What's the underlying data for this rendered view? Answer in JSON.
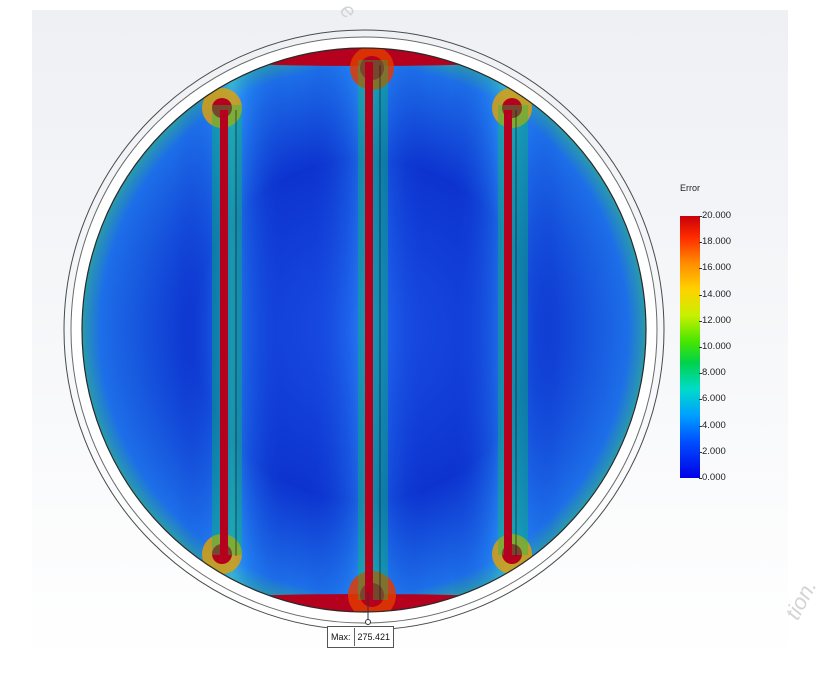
{
  "legend": {
    "title": "Error",
    "ticks": [
      "20.000",
      "18.000",
      "16.000",
      "14.000",
      "12.000",
      "10.000",
      "8.000",
      "6.000",
      "4.000",
      "2.000",
      "0.000"
    ]
  },
  "max_label": {
    "prefix": "Max:",
    "value": "275.421"
  },
  "colors": {
    "low": "#0a2fd0",
    "mid": "#1f8fe0",
    "high": "#b5001e",
    "accent": "#00c84a"
  },
  "watermarks": {
    "top_fragment": "e",
    "right_fragment": "tion."
  }
}
